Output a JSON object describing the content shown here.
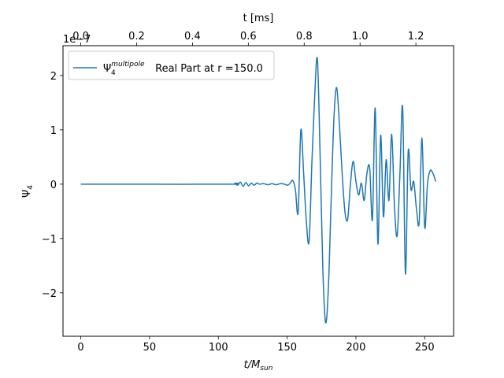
{
  "chart_data": {
    "type": "line",
    "xlabel": "t/M",
    "xlabel_sub": "sun",
    "ylabel": "Ψ",
    "ylabel_sub": "4",
    "top_xlabel": "t [ms]",
    "offset_text": "1e−7",
    "xlim": [
      -12.9,
      271.0
    ],
    "ylim": [
      -2.8,
      2.55
    ],
    "y_scale_note": "values in units of 1e-7",
    "grid": false,
    "legend_position": "top-left",
    "x_ticks": [
      "0",
      "50",
      "100",
      "150",
      "200",
      "250"
    ],
    "x_tick_values": [
      0,
      50,
      100,
      150,
      200,
      250
    ],
    "y_ticks": [
      "−2",
      "−1",
      "0",
      "1",
      "2"
    ],
    "y_tick_values": [
      -2,
      -1,
      0,
      1,
      2
    ],
    "top_ticks": [
      "0.0",
      "0.2",
      "0.4",
      "0.6",
      "0.8",
      "1.0",
      "1.2"
    ],
    "top_tick_values_ms": [
      0.0,
      0.2,
      0.4,
      0.6,
      0.8,
      1.0,
      1.2
    ],
    "ms_per_unit": 0.004926,
    "series": [
      {
        "name_main": "Ψ",
        "name_sub": "4",
        "name_sup": "multipole",
        "name_rest": " Real Part at r =150.0",
        "color": "#1f77b4",
        "x": [
          0,
          50,
          110,
          112,
          114,
          116,
          118,
          120,
          122,
          124,
          126,
          128,
          130,
          133,
          136,
          139,
          142,
          145,
          148,
          150,
          152,
          154,
          156,
          158,
          160,
          162,
          164,
          166,
          168,
          170,
          172,
          174,
          176,
          178,
          180,
          182,
          184,
          186,
          188,
          190,
          192,
          194,
          196,
          198,
          200,
          202,
          204,
          206,
          208,
          210,
          212,
          214,
          216,
          218,
          220,
          222,
          224,
          226,
          228,
          230,
          232,
          234,
          236,
          238,
          240,
          242,
          244,
          246,
          248,
          250,
          252,
          254,
          256,
          258
        ],
        "values": [
          0,
          0,
          0,
          0.02,
          -0.02,
          0.04,
          -0.04,
          0.03,
          -0.03,
          0.02,
          -0.02,
          0.02,
          0,
          0.01,
          -0.01,
          0.01,
          -0.01,
          0.01,
          0,
          -0.02,
          0.01,
          0.07,
          -0.1,
          -0.52,
          1.0,
          0.2,
          -0.7,
          -1.05,
          0.4,
          1.6,
          2.3,
          0.5,
          -1.6,
          -2.55,
          -1.9,
          -0.3,
          1.2,
          1.78,
          1.1,
          0.2,
          -0.5,
          -0.65,
          0.0,
          0.42,
          0.05,
          -0.2,
          0.02,
          -0.3,
          0.2,
          0.3,
          -0.65,
          1.4,
          -1.1,
          0.9,
          -0.6,
          0.45,
          -0.3,
          0.92,
          -0.4,
          -0.95,
          0.2,
          1.4,
          -1.65,
          0.6,
          -0.1,
          0.05,
          -0.45,
          -0.7,
          0.85,
          -0.8,
          0.0,
          0.25,
          0.2,
          0.05
        ]
      }
    ]
  }
}
